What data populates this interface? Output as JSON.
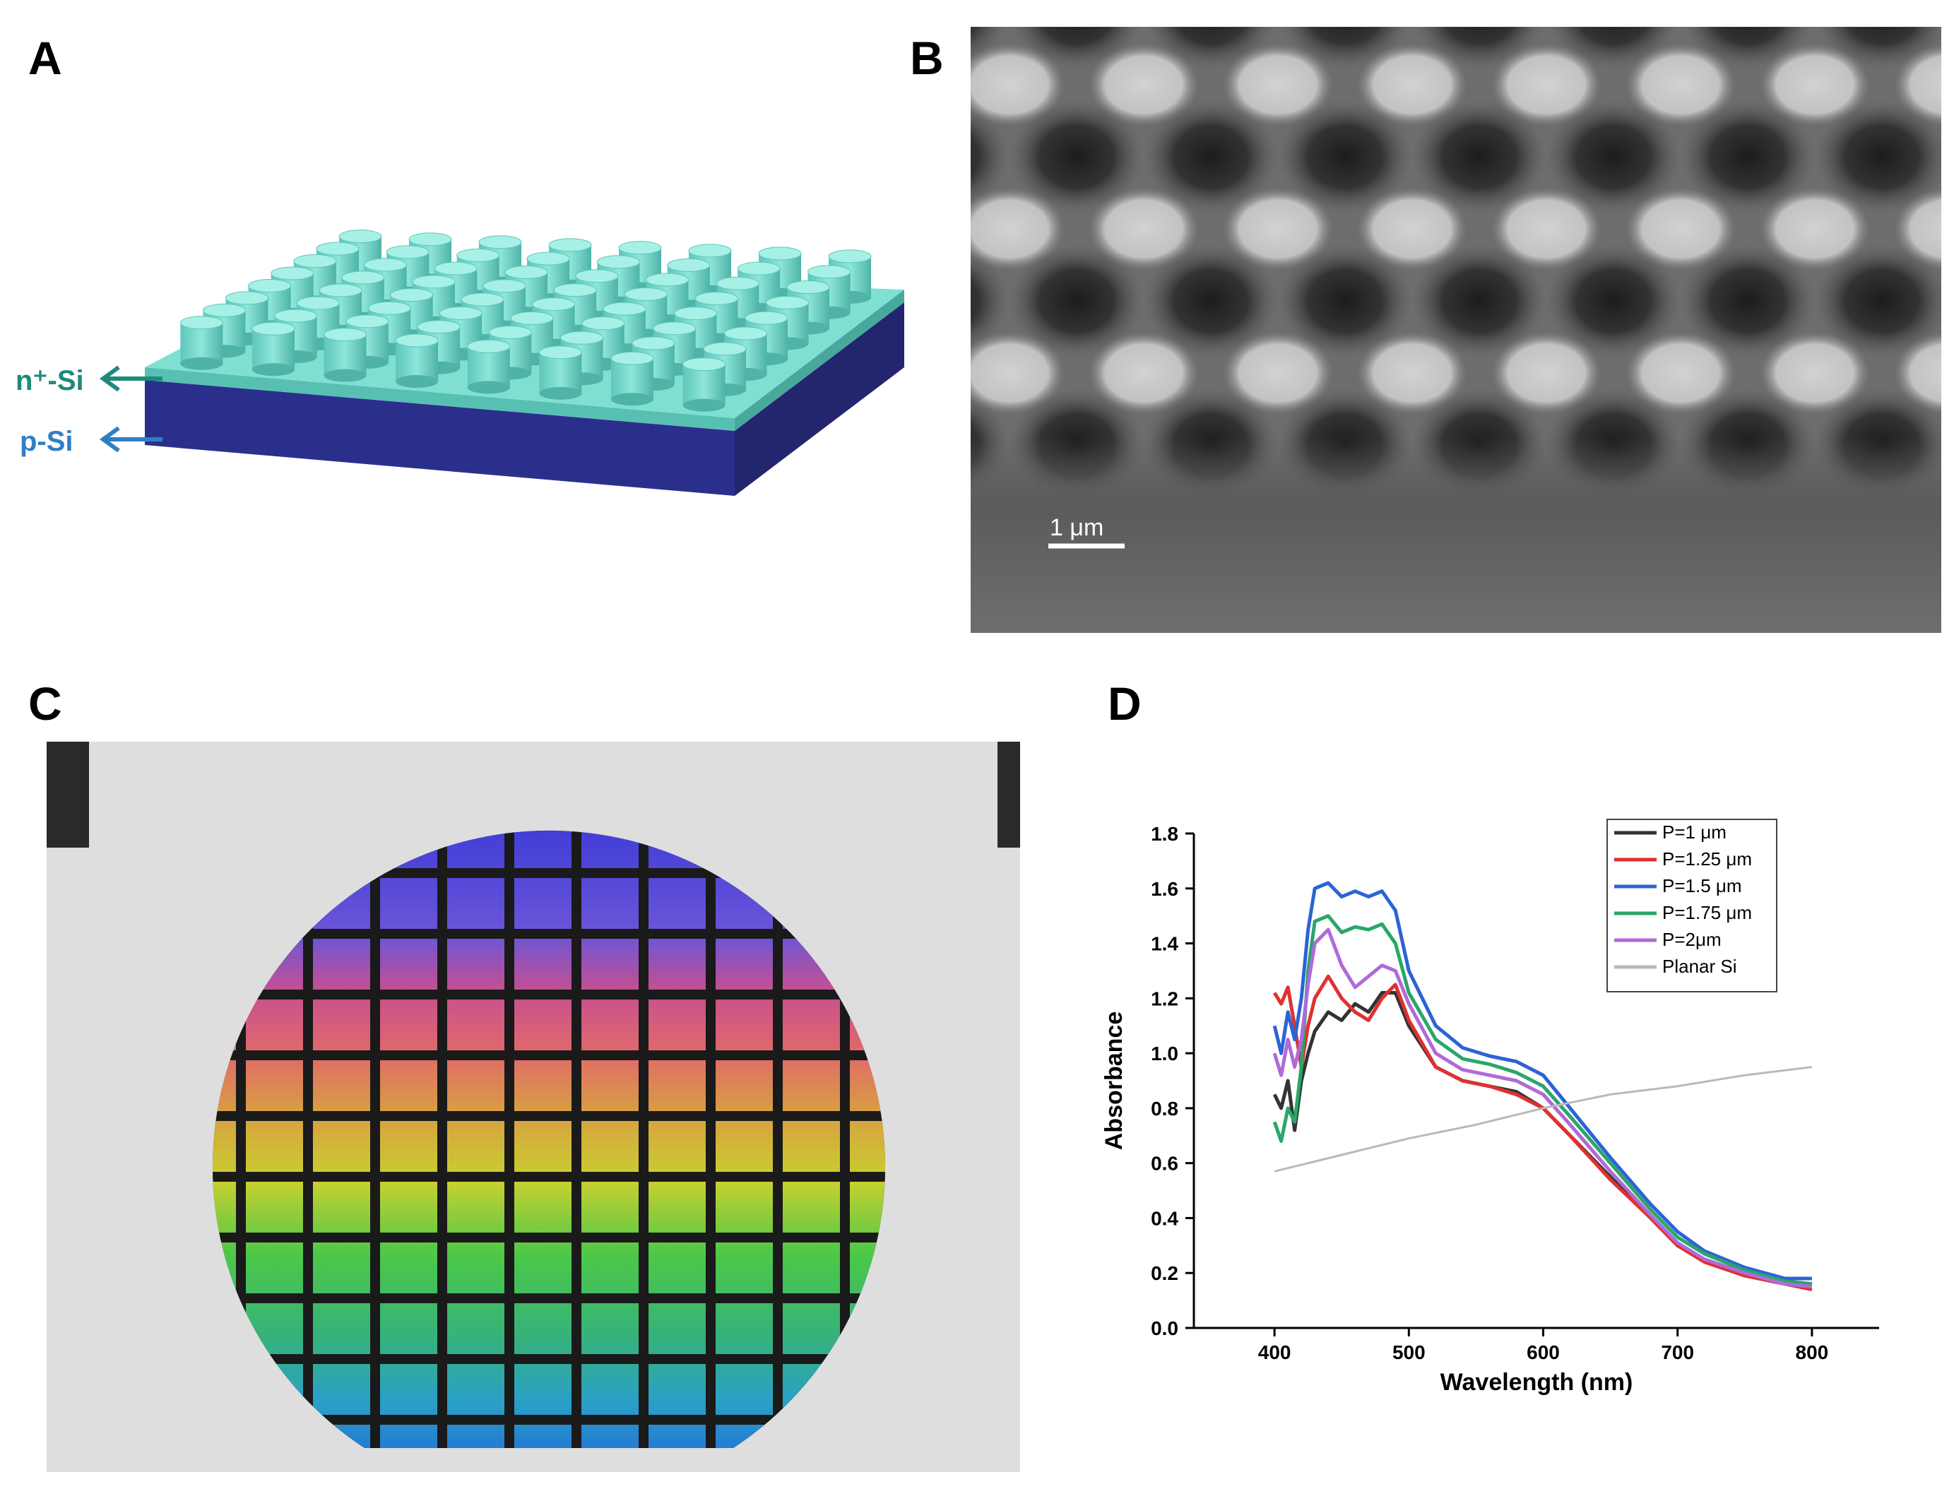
{
  "panels": {
    "a": {
      "label": "A",
      "layer_top": "n⁺-Si",
      "layer_bottom": "p-Si"
    },
    "b": {
      "label": "B",
      "scale_bar": "1 μm"
    },
    "c": {
      "label": "C"
    },
    "d": {
      "label": "D"
    }
  },
  "colors": {
    "substrate": "#2b2f8c",
    "top_layer": "#7fe0d2",
    "n_label": "#1f8a7a",
    "p_label": "#2f7fc4"
  },
  "chart_data": {
    "type": "line",
    "xlabel": "Wavelength (nm)",
    "ylabel": "Absorbance",
    "xlim": [
      340,
      850
    ],
    "ylim": [
      0.0,
      1.8
    ],
    "xticks": [
      400,
      500,
      600,
      700,
      800
    ],
    "yticks": [
      0.0,
      0.2,
      0.4,
      0.6,
      0.8,
      1.0,
      1.2,
      1.4,
      1.6,
      1.8
    ],
    "legend_position": "top-right",
    "series": [
      {
        "name": "P=1 μm",
        "color": "#333333",
        "x": [
          400,
          405,
          410,
          415,
          420,
          425,
          430,
          440,
          450,
          460,
          470,
          480,
          490,
          500,
          520,
          540,
          560,
          580,
          600,
          620,
          650,
          680,
          700,
          720,
          750,
          780,
          800
        ],
        "y": [
          0.85,
          0.8,
          0.9,
          0.72,
          0.9,
          1.0,
          1.08,
          1.15,
          1.12,
          1.18,
          1.15,
          1.22,
          1.22,
          1.1,
          0.95,
          0.9,
          0.88,
          0.86,
          0.8,
          0.7,
          0.55,
          0.4,
          0.3,
          0.25,
          0.2,
          0.17,
          0.16
        ]
      },
      {
        "name": "P=1.25 μm",
        "color": "#e03030",
        "x": [
          400,
          405,
          410,
          415,
          420,
          425,
          430,
          440,
          450,
          460,
          470,
          480,
          490,
          500,
          520,
          540,
          560,
          580,
          600,
          620,
          650,
          680,
          700,
          720,
          750,
          780,
          800
        ],
        "y": [
          1.22,
          1.18,
          1.24,
          1.1,
          0.95,
          1.1,
          1.2,
          1.28,
          1.2,
          1.15,
          1.12,
          1.2,
          1.25,
          1.12,
          0.95,
          0.9,
          0.88,
          0.85,
          0.8,
          0.7,
          0.54,
          0.4,
          0.3,
          0.24,
          0.19,
          0.16,
          0.14
        ]
      },
      {
        "name": "P=1.5 μm",
        "color": "#2c63d6",
        "x": [
          400,
          405,
          410,
          415,
          420,
          425,
          430,
          440,
          450,
          460,
          470,
          480,
          490,
          500,
          520,
          540,
          560,
          580,
          600,
          620,
          650,
          680,
          700,
          720,
          750,
          780,
          800
        ],
        "y": [
          1.1,
          1.0,
          1.15,
          1.05,
          1.2,
          1.45,
          1.6,
          1.62,
          1.57,
          1.59,
          1.57,
          1.59,
          1.52,
          1.3,
          1.1,
          1.02,
          0.99,
          0.97,
          0.92,
          0.8,
          0.62,
          0.45,
          0.35,
          0.28,
          0.22,
          0.18,
          0.18
        ]
      },
      {
        "name": "P=1.75 μm",
        "color": "#2aa66a",
        "x": [
          400,
          405,
          410,
          415,
          420,
          425,
          430,
          440,
          450,
          460,
          470,
          480,
          490,
          500,
          520,
          540,
          560,
          580,
          600,
          620,
          650,
          680,
          700,
          720,
          750,
          780,
          800
        ],
        "y": [
          0.75,
          0.68,
          0.8,
          0.75,
          0.95,
          1.3,
          1.48,
          1.5,
          1.44,
          1.46,
          1.45,
          1.47,
          1.4,
          1.22,
          1.05,
          0.98,
          0.96,
          0.93,
          0.88,
          0.77,
          0.6,
          0.43,
          0.33,
          0.27,
          0.21,
          0.17,
          0.16
        ]
      },
      {
        "name": "P=2μm",
        "color": "#b06ad8",
        "x": [
          400,
          405,
          410,
          415,
          420,
          425,
          430,
          440,
          450,
          460,
          470,
          480,
          490,
          500,
          520,
          540,
          560,
          580,
          600,
          620,
          650,
          680,
          700,
          720,
          750,
          780,
          800
        ],
        "y": [
          1.0,
          0.92,
          1.05,
          0.95,
          1.05,
          1.25,
          1.4,
          1.45,
          1.32,
          1.24,
          1.28,
          1.32,
          1.3,
          1.18,
          1.0,
          0.94,
          0.92,
          0.9,
          0.85,
          0.74,
          0.57,
          0.41,
          0.31,
          0.25,
          0.2,
          0.16,
          0.15
        ]
      },
      {
        "name": "Planar Si",
        "color": "#b9b9b9",
        "x": [
          400,
          450,
          500,
          550,
          600,
          650,
          700,
          750,
          800
        ],
        "y": [
          0.57,
          0.63,
          0.69,
          0.74,
          0.8,
          0.85,
          0.88,
          0.92,
          0.95
        ]
      }
    ]
  }
}
